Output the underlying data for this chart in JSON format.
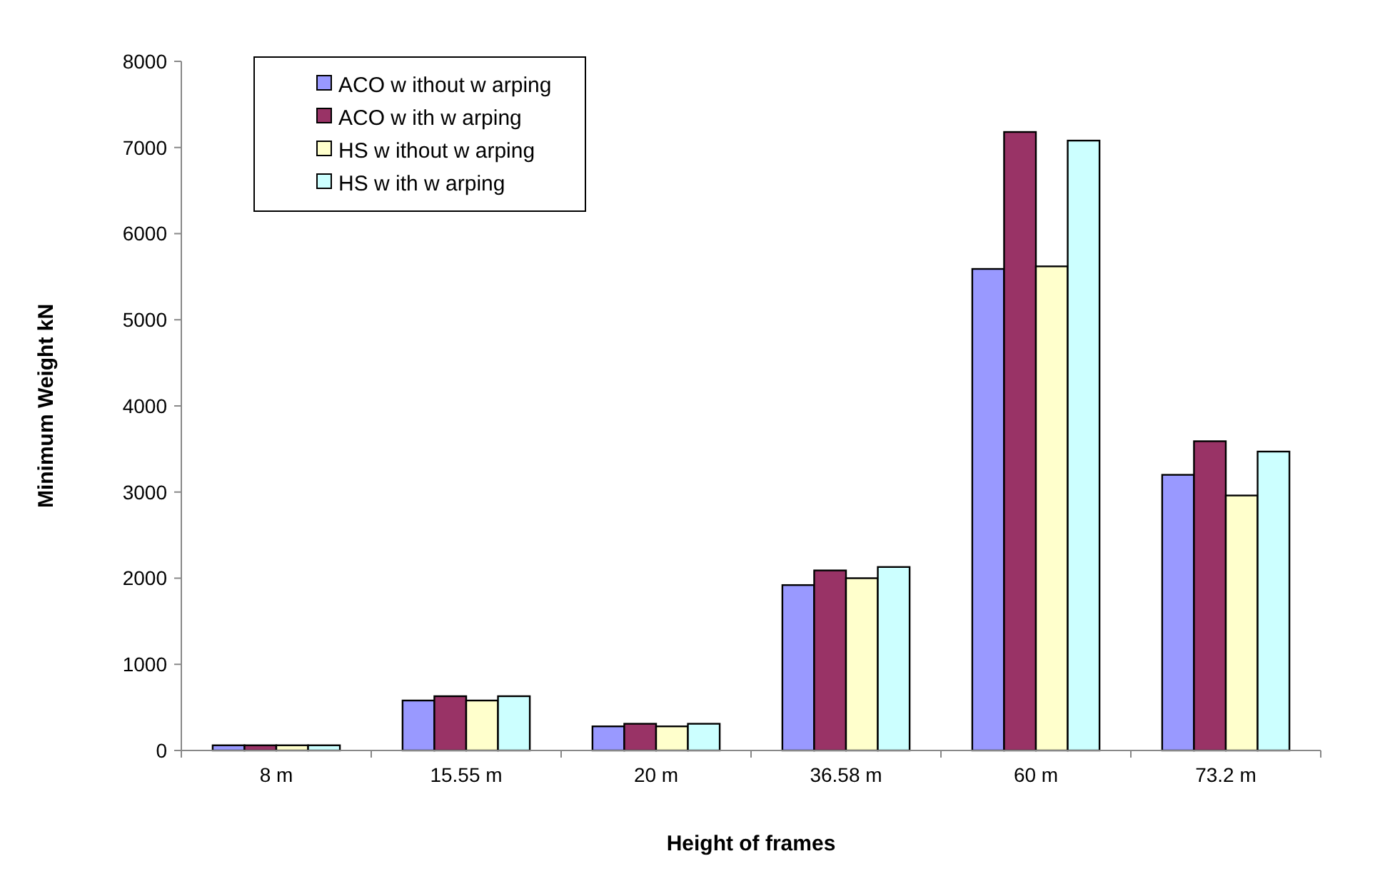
{
  "chart_data": {
    "type": "bar",
    "xlabel": "Height of frames",
    "ylabel": "Minimum Weight kN",
    "categories": [
      "8 m",
      "15.55 m",
      "20 m",
      "36.58 m",
      "60 m",
      "73.2 m"
    ],
    "series": [
      {
        "name": "ACO w ithout w arping",
        "color": "#9999ff",
        "values": [
          60,
          580,
          280,
          1920,
          5590,
          3200
        ]
      },
      {
        "name": "ACO w ith w arping",
        "color": "#993366",
        "values": [
          60,
          630,
          310,
          2090,
          7180,
          3590
        ]
      },
      {
        "name": "HS w ithout w arping",
        "color": "#ffffcc",
        "values": [
          60,
          580,
          280,
          2000,
          5620,
          2960
        ]
      },
      {
        "name": "HS w ith w arping",
        "color": "#ccffff",
        "values": [
          60,
          630,
          310,
          2130,
          7080,
          3470
        ]
      }
    ],
    "ylim": [
      0,
      8000
    ],
    "yticks": [
      0,
      1000,
      2000,
      3000,
      4000,
      5000,
      6000,
      7000,
      8000
    ],
    "legend": "top left"
  }
}
